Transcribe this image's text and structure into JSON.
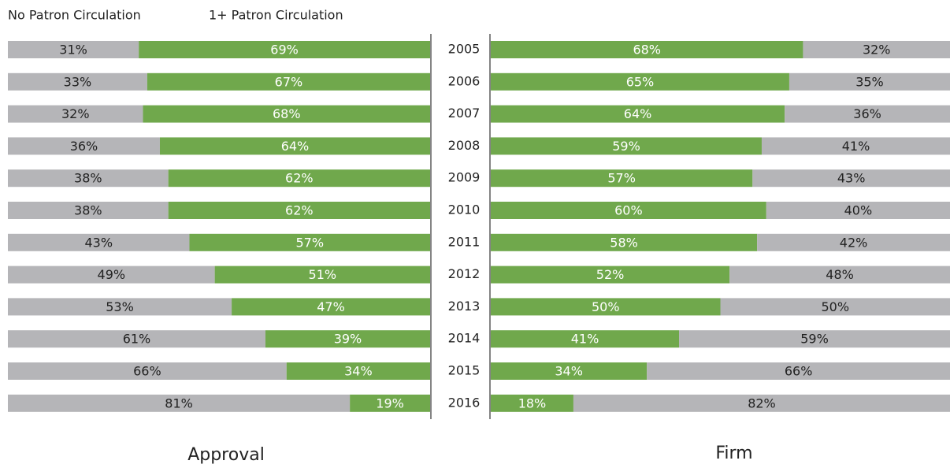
{
  "chart_data": {
    "type": "bar",
    "stacked": true,
    "categories": [
      "2005",
      "2006",
      "2007",
      "2008",
      "2009",
      "2010",
      "2011",
      "2012",
      "2013",
      "2014",
      "2015",
      "2016"
    ],
    "series": [
      {
        "name": "No Patron Circulation",
        "color": "#b5b5b8"
      },
      {
        "name": "1+ Patron Circulation",
        "color": "#70a84c"
      }
    ],
    "panels": [
      {
        "title": "Approval",
        "order": [
          0,
          1
        ],
        "values": [
          [
            31,
            33,
            32,
            36,
            38,
            38,
            43,
            49,
            53,
            61,
            66,
            81
          ],
          [
            69,
            67,
            68,
            64,
            62,
            62,
            57,
            51,
            47,
            39,
            34,
            19
          ]
        ],
        "value_labels": [
          [
            "31%",
            "33%",
            "32%",
            "36%",
            "38%",
            "38%",
            "43%",
            "49%",
            "53%",
            "61%",
            "66%",
            "81%"
          ],
          [
            "69%",
            "67%",
            "68%",
            "64%",
            "62%",
            "62%",
            "57%",
            "51%",
            "47%",
            "39%",
            "34%",
            "19%"
          ]
        ]
      },
      {
        "title": "Firm",
        "order": [
          1,
          0
        ],
        "values": [
          [
            32,
            35,
            36,
            41,
            43,
            40,
            42,
            48,
            50,
            59,
            66,
            82
          ],
          [
            68,
            65,
            64,
            59,
            57,
            60,
            58,
            52,
            50,
            41,
            34,
            18
          ]
        ],
        "value_labels": [
          [
            "32%",
            "35%",
            "36%",
            "41%",
            "43%",
            "40%",
            "42%",
            "48%",
            "50%",
            "59%",
            "66%",
            "82%"
          ],
          [
            "68%",
            "65%",
            "64%",
            "59%",
            "57%",
            "60%",
            "58%",
            "52%",
            "50%",
            "41%",
            "34%",
            "18%"
          ]
        ]
      }
    ]
  }
}
